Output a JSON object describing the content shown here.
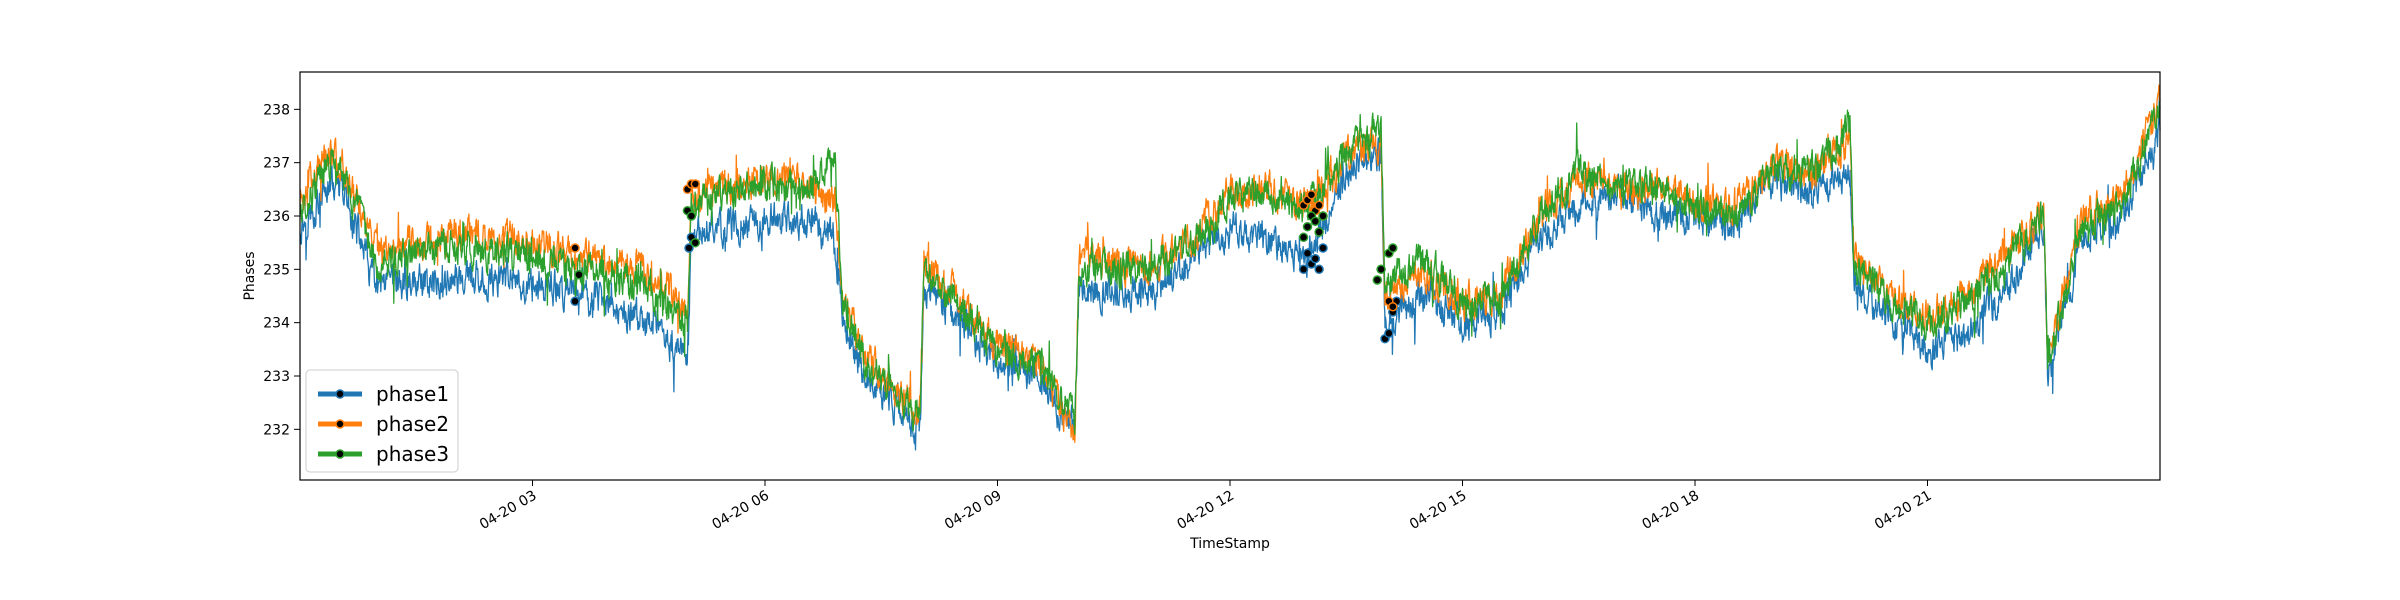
{
  "chart_data": {
    "type": "line",
    "xlabel": "TimeStamp",
    "ylabel": "Phases",
    "x_range": [
      "04-20 00:00",
      "04-20 24:00"
    ],
    "ylim": [
      231.05,
      238.7
    ],
    "x_tick_labels": [
      "04-20 03",
      "04-20 06",
      "04-20 09",
      "04-20 12",
      "04-20 15",
      "04-20 18",
      "04-20 21"
    ],
    "x_tick_hours": [
      3,
      6,
      9,
      12,
      15,
      18,
      21
    ],
    "y_ticks": [
      232,
      233,
      234,
      235,
      236,
      237,
      238
    ],
    "grid": false,
    "legend_position": "lower-left",
    "series": [
      {
        "name": "phase1",
        "color": "#1f77b4",
        "hours": [
          0.0,
          0.4,
          0.6,
          1.0,
          1.5,
          2.0,
          2.5,
          3.0,
          3.5,
          4.0,
          4.5,
          5.0,
          5.05,
          5.3,
          5.6,
          6.0,
          6.5,
          6.9,
          7.0,
          7.3,
          7.6,
          8.0,
          8.05,
          8.5,
          9.0,
          9.5,
          10.0,
          10.05,
          10.5,
          11.0,
          11.5,
          12.0,
          12.5,
          13.0,
          13.5,
          13.95,
          14.0,
          14.5,
          15.0,
          15.5,
          16.0,
          16.5,
          17.0,
          17.5,
          18.0,
          18.5,
          19.0,
          19.5,
          20.0,
          20.05,
          20.5,
          21.0,
          21.5,
          22.0,
          22.5,
          22.55,
          23.0,
          23.5,
          24.0
        ],
        "values": [
          235.8,
          236.6,
          236.3,
          234.6,
          234.8,
          234.8,
          234.8,
          234.7,
          234.6,
          234.3,
          234.0,
          233.3,
          235.6,
          235.8,
          235.8,
          235.9,
          235.9,
          235.6,
          234.0,
          233.0,
          232.6,
          232.0,
          234.6,
          234.1,
          233.2,
          233.1,
          232.0,
          234.6,
          234.6,
          234.6,
          235.2,
          235.8,
          235.6,
          235.2,
          236.8,
          237.2,
          233.9,
          234.5,
          234.0,
          234.2,
          235.6,
          236.2,
          236.4,
          236.0,
          236.0,
          235.8,
          236.7,
          236.4,
          236.9,
          234.7,
          234.1,
          233.5,
          233.8,
          234.6,
          235.8,
          233.0,
          235.6,
          236.0,
          237.6
        ]
      },
      {
        "name": "phase2",
        "color": "#ff7f0e",
        "hours": [
          0.0,
          0.4,
          0.6,
          1.0,
          1.5,
          2.0,
          2.5,
          3.0,
          3.5,
          4.0,
          4.5,
          5.0,
          5.05,
          5.3,
          5.6,
          6.0,
          6.5,
          6.9,
          7.0,
          7.3,
          7.6,
          8.0,
          8.05,
          8.5,
          9.0,
          9.5,
          10.0,
          10.05,
          10.5,
          11.0,
          11.5,
          12.0,
          12.5,
          13.0,
          13.5,
          13.95,
          14.0,
          14.5,
          15.0,
          15.5,
          16.0,
          16.5,
          17.0,
          17.5,
          18.0,
          18.5,
          19.0,
          19.5,
          20.0,
          20.05,
          20.5,
          21.0,
          21.5,
          22.0,
          22.5,
          22.55,
          23.0,
          23.5,
          24.0
        ],
        "values": [
          236.3,
          237.3,
          236.8,
          235.3,
          235.5,
          235.7,
          235.6,
          235.5,
          235.3,
          235.2,
          235.0,
          234.2,
          236.3,
          236.5,
          236.6,
          236.7,
          236.6,
          236.3,
          234.5,
          233.4,
          232.9,
          232.3,
          235.0,
          234.5,
          233.6,
          233.3,
          231.9,
          235.2,
          235.1,
          235.1,
          235.6,
          236.4,
          236.5,
          236.2,
          237.1,
          237.4,
          234.4,
          235.0,
          234.4,
          234.6,
          236.0,
          236.7,
          236.6,
          236.6,
          236.3,
          236.1,
          236.9,
          236.8,
          237.4,
          235.2,
          234.5,
          234.1,
          234.5,
          235.3,
          236.1,
          233.3,
          236.0,
          236.3,
          238.2
        ]
      },
      {
        "name": "phase3",
        "color": "#2ca02c",
        "hours": [
          0.0,
          0.4,
          0.6,
          1.0,
          1.5,
          2.0,
          2.5,
          3.0,
          3.5,
          4.0,
          4.5,
          5.0,
          5.05,
          5.3,
          5.6,
          6.0,
          6.5,
          6.9,
          7.0,
          7.3,
          7.6,
          8.0,
          8.05,
          8.5,
          9.0,
          9.5,
          10.0,
          10.05,
          10.5,
          11.0,
          11.5,
          12.0,
          12.5,
          13.0,
          13.5,
          13.95,
          14.0,
          14.5,
          15.0,
          15.5,
          16.0,
          16.5,
          17.0,
          17.5,
          18.0,
          18.5,
          19.0,
          19.5,
          20.0,
          20.05,
          20.5,
          21.0,
          21.5,
          22.0,
          22.5,
          22.55,
          23.0,
          23.5,
          24.0
        ],
        "values": [
          236.1,
          237.0,
          236.6,
          235.1,
          235.3,
          235.4,
          235.3,
          235.2,
          235.0,
          234.9,
          234.6,
          234.0,
          236.2,
          236.4,
          236.5,
          236.6,
          236.5,
          237.1,
          234.4,
          233.3,
          232.8,
          232.3,
          234.9,
          234.3,
          233.5,
          233.3,
          232.2,
          235.0,
          235.0,
          235.0,
          235.5,
          236.3,
          236.5,
          236.1,
          237.2,
          237.7,
          234.7,
          235.2,
          234.3,
          234.5,
          236.0,
          236.8,
          236.6,
          236.6,
          236.2,
          236.0,
          236.9,
          236.8,
          237.7,
          235.0,
          234.4,
          234.0,
          234.4,
          235.1,
          236.0,
          233.2,
          235.8,
          236.2,
          238.0
        ]
      }
    ],
    "highlighted_points": {
      "marker_color": "#000000",
      "phase1": [
        [
          3.55,
          234.4
        ],
        [
          3.6,
          234.9
        ],
        [
          5.02,
          235.4
        ],
        [
          5.05,
          235.6
        ],
        [
          12.95,
          235.0
        ],
        [
          13.0,
          235.3
        ],
        [
          13.05,
          235.1
        ],
        [
          13.1,
          235.2
        ],
        [
          13.15,
          235.0
        ],
        [
          13.2,
          235.4
        ],
        [
          14.0,
          233.7
        ],
        [
          14.05,
          233.8
        ],
        [
          14.1,
          234.2
        ],
        [
          14.15,
          234.4
        ]
      ],
      "phase2": [
        [
          3.55,
          235.4
        ],
        [
          5.0,
          236.5
        ],
        [
          5.05,
          236.6
        ],
        [
          5.1,
          236.6
        ],
        [
          12.95,
          236.2
        ],
        [
          13.0,
          236.3
        ],
        [
          13.05,
          236.4
        ],
        [
          13.1,
          236.1
        ],
        [
          13.15,
          236.2
        ],
        [
          13.2,
          236.0
        ],
        [
          14.05,
          234.4
        ],
        [
          14.1,
          234.3
        ]
      ],
      "phase3": [
        [
          3.6,
          234.9
        ],
        [
          5.0,
          236.1
        ],
        [
          5.05,
          236.0
        ],
        [
          5.1,
          235.5
        ],
        [
          12.95,
          235.6
        ],
        [
          13.0,
          235.8
        ],
        [
          13.05,
          236.0
        ],
        [
          13.1,
          235.9
        ],
        [
          13.15,
          235.7
        ],
        [
          13.2,
          236.0
        ],
        [
          13.9,
          234.8
        ],
        [
          13.95,
          235.0
        ],
        [
          14.05,
          235.3
        ],
        [
          14.1,
          235.4
        ]
      ]
    }
  }
}
